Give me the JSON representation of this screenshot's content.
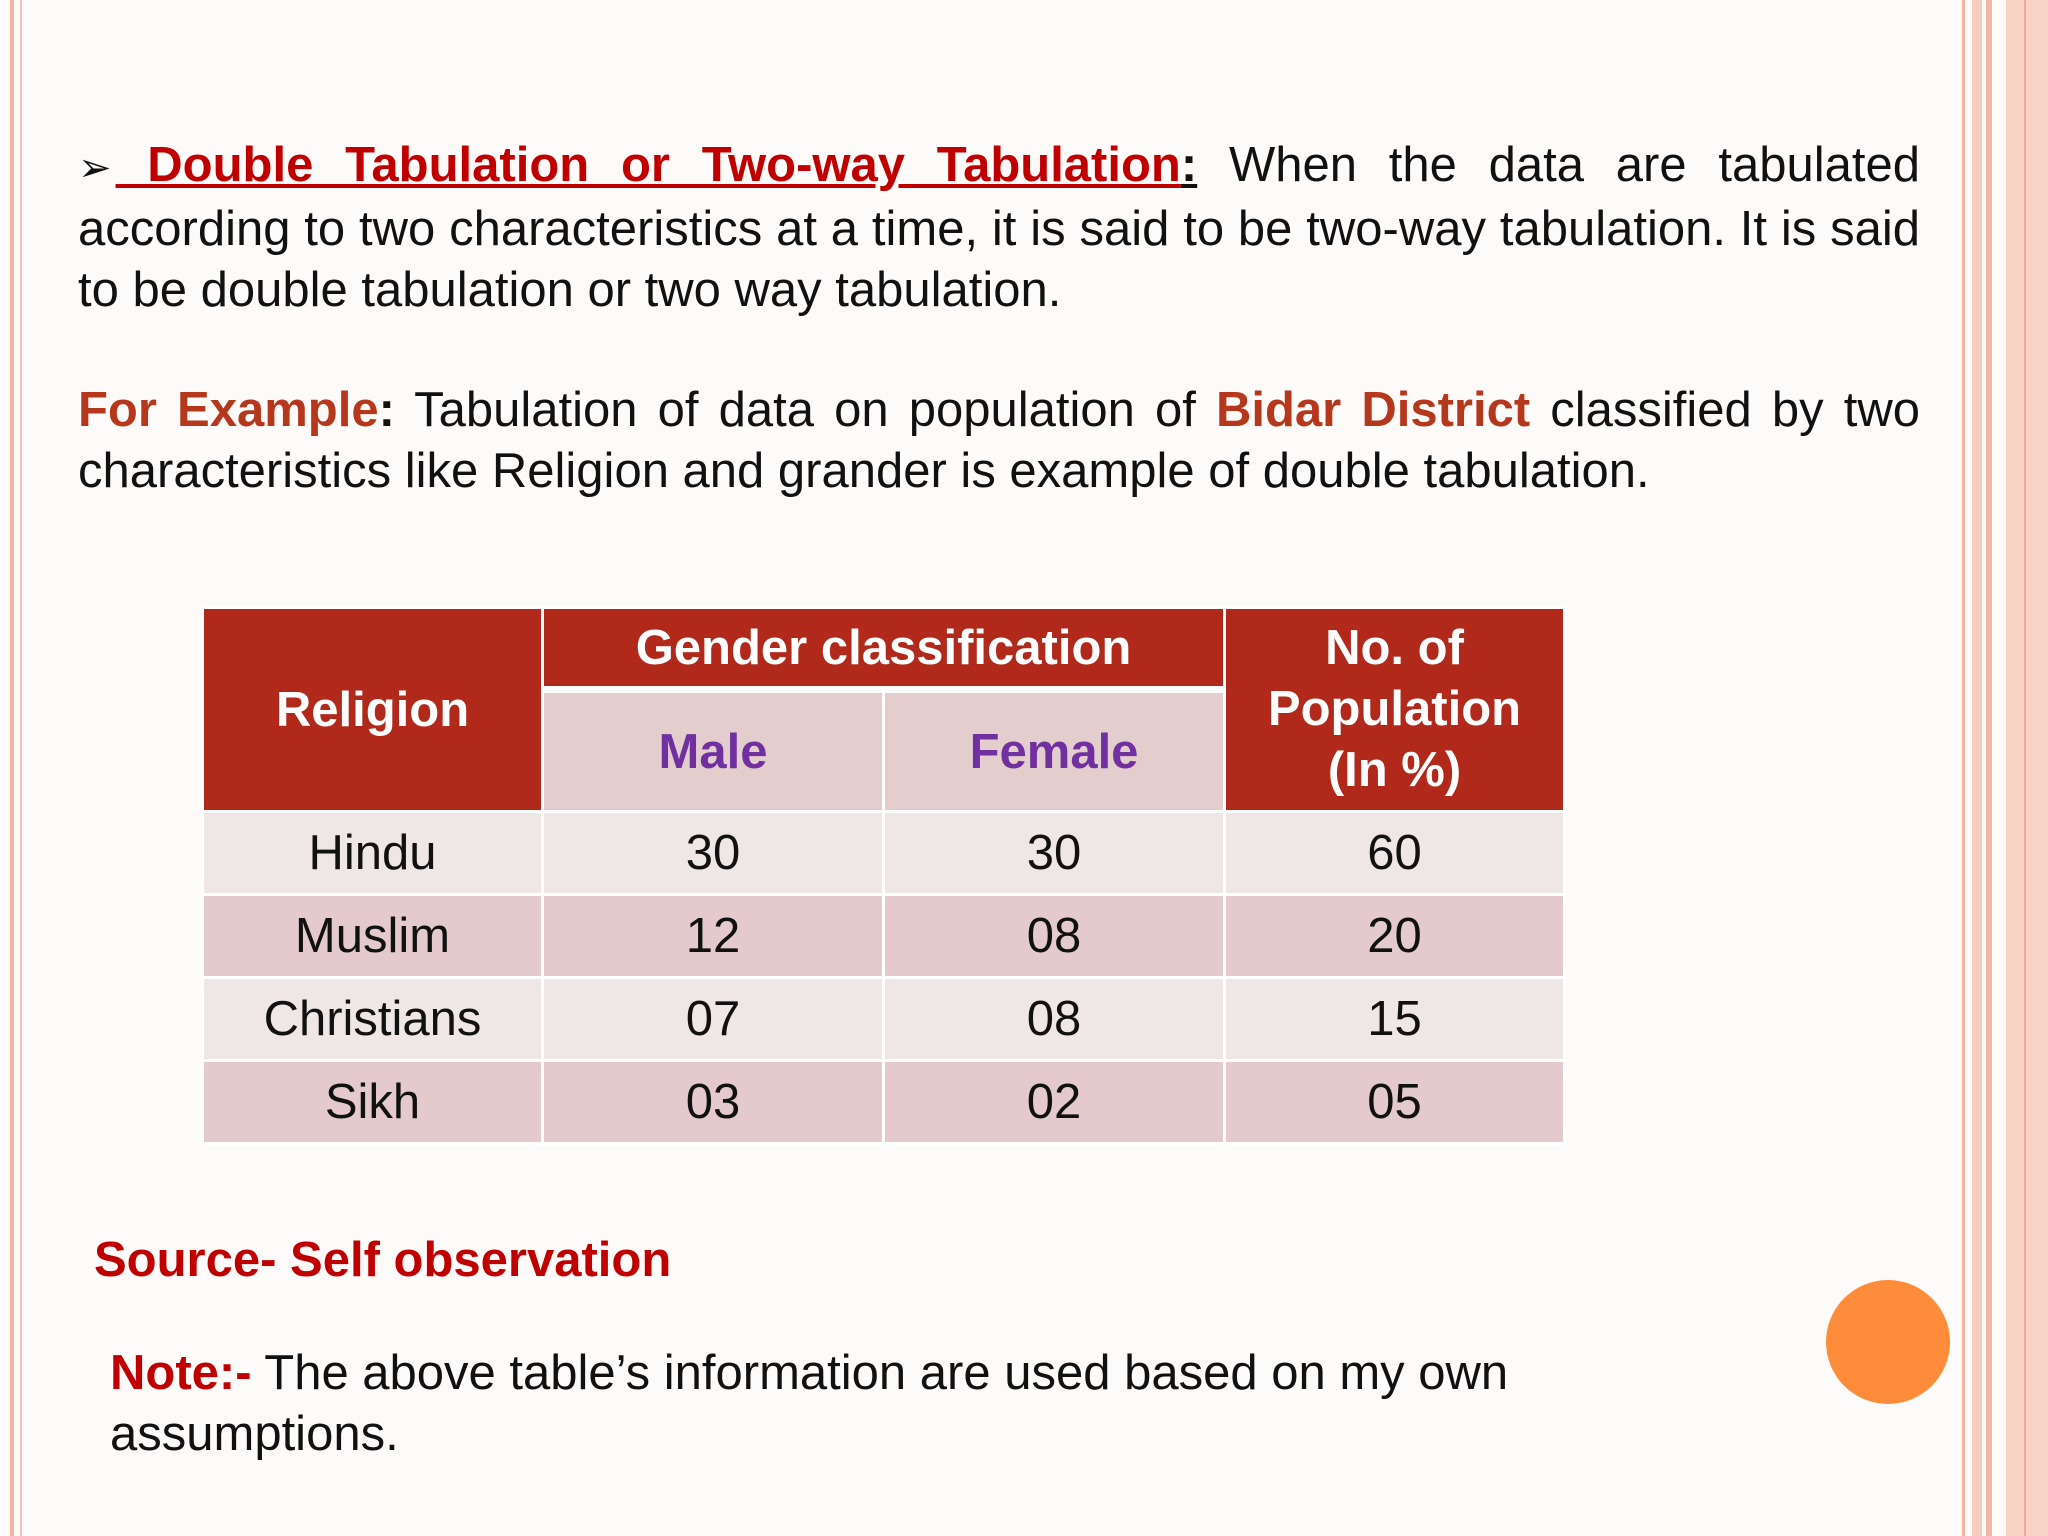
{
  "intro": {
    "bullet": "➢",
    "term": " Double Tabulation or Two-way Tabulation",
    "colon": ":",
    "definition": " When the data are tabulated according to two characteristics at a time, it is said to be two-way tabulation. It is said to be double tabulation or two way tabulation."
  },
  "example": {
    "label": "For Example",
    "colon": ":",
    "text1": " Tabulation of data on population of ",
    "highlight": "Bidar District",
    "text2": " classified by two characteristics like Religion and grander is example of double tabulation."
  },
  "table": {
    "col_religion": "Religion",
    "col_gender": "Gender classification",
    "col_male": "Male",
    "col_female": "Female",
    "col_population": "No. of Population (In %)",
    "rows": [
      {
        "religion": "Hindu",
        "male": "30",
        "female": "30",
        "population": "60"
      },
      {
        "religion": "Muslim",
        "male": "12",
        "female": "08",
        "population": "20"
      },
      {
        "religion": "Christians",
        "male": "07",
        "female": "08",
        "population": "15"
      },
      {
        "religion": "Sikh",
        "male": "03",
        "female": "02",
        "population": "05"
      }
    ]
  },
  "source": "Source- Self observation",
  "note": {
    "label": "Note:-",
    "text": " The above table’s information are used based on my own assumptions."
  },
  "colors": {
    "header_bg": "#b0291a",
    "subheader_bg": "#e4cdcd",
    "subheader_text": "#7030a0",
    "accent_red": "#c00000",
    "accent_brown": "#b5381c",
    "circle": "#ff8c3a"
  }
}
